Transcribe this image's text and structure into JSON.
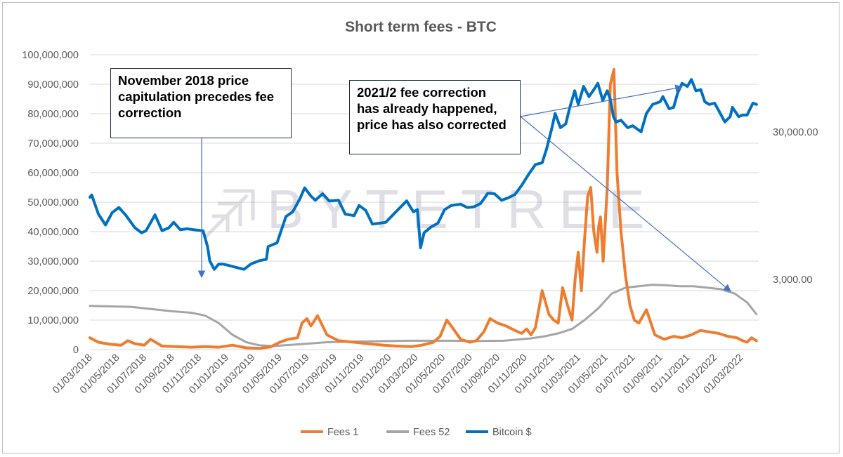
{
  "watermark": "BYTETREE",
  "annotations": [
    {
      "lines": [
        "November 2018 price",
        "capitulation precedes fee",
        "correction"
      ]
    },
    {
      "lines": [
        "2021/2 fee correction",
        "has already happened,",
        "price has also corrected"
      ]
    }
  ],
  "chart_data": {
    "type": "line",
    "title": "Short term fees - BTC",
    "xlabel": "",
    "ylabel": "",
    "y_left": {
      "ylim": [
        0,
        100000000
      ],
      "ticks": [
        0,
        10000000,
        20000000,
        30000000,
        40000000,
        50000000,
        60000000,
        70000000,
        80000000,
        90000000,
        100000000
      ],
      "tick_labels": [
        "0",
        "10,000,000",
        "20,000,000",
        "30,000,000",
        "40,000,000",
        "50,000,000",
        "60,000,000",
        "70,000,000",
        "80,000,000",
        "90,000,000",
        "100,000,000"
      ]
    },
    "y_right": {
      "scale": "log",
      "tick_labels": [
        "3,000.00",
        "30,000.00"
      ],
      "ticks": [
        3000,
        30000
      ],
      "ylim": [
        1000,
        100000
      ]
    },
    "x": {
      "xlim": [
        "2018-03-01",
        "2022-04-10"
      ],
      "tick_labels": [
        "01/03/2018",
        "01/05/2018",
        "01/07/2018",
        "01/09/2018",
        "01/11/2018",
        "01/01/2019",
        "01/03/2019",
        "01/05/2019",
        "01/07/2019",
        "01/09/2019",
        "01/11/2019",
        "01/01/2020",
        "01/03/2020",
        "01/05/2020",
        "01/07/2020",
        "01/09/2020",
        "01/11/2020",
        "01/01/2021",
        "01/03/2021",
        "01/05/2021",
        "01/07/2021",
        "01/09/2021",
        "01/11/2021",
        "01/01/2022",
        "01/03/2022"
      ],
      "ticks": [
        "2018-03-01",
        "2018-05-01",
        "2018-07-01",
        "2018-09-01",
        "2018-11-01",
        "2019-01-01",
        "2019-03-01",
        "2019-05-01",
        "2019-07-01",
        "2019-09-01",
        "2019-11-01",
        "2020-01-01",
        "2020-03-01",
        "2020-05-01",
        "2020-07-01",
        "2020-09-01",
        "2020-11-01",
        "2021-01-01",
        "2021-03-01",
        "2021-05-01",
        "2021-07-01",
        "2021-09-01",
        "2021-11-01",
        "2022-01-01",
        "2022-03-01"
      ]
    },
    "legend_position": "bottom",
    "grid": "horizontal",
    "series": [
      {
        "name": "Fees 1",
        "axis": "left",
        "color": "#ed7d31",
        "x": [
          "2018-03-01",
          "2018-03-20",
          "2018-04-15",
          "2018-05-10",
          "2018-05-25",
          "2018-06-10",
          "2018-07-01",
          "2018-07-15",
          "2018-08-10",
          "2018-09-10",
          "2018-10-15",
          "2018-11-15",
          "2018-12-15",
          "2019-01-15",
          "2019-02-15",
          "2019-03-15",
          "2019-04-10",
          "2019-05-01",
          "2019-05-20",
          "2019-06-10",
          "2019-06-20",
          "2019-07-01",
          "2019-07-10",
          "2019-07-25",
          "2019-08-15",
          "2019-09-10",
          "2019-10-15",
          "2019-11-15",
          "2019-12-20",
          "2020-01-20",
          "2020-02-20",
          "2020-03-15",
          "2020-04-10",
          "2020-04-25",
          "2020-05-10",
          "2020-05-20",
          "2020-06-10",
          "2020-07-01",
          "2020-07-15",
          "2020-08-01",
          "2020-08-15",
          "2020-09-01",
          "2020-09-20",
          "2020-10-10",
          "2020-10-25",
          "2020-11-05",
          "2020-11-15",
          "2020-11-25",
          "2020-12-10",
          "2020-12-25",
          "2021-01-05",
          "2021-01-15",
          "2021-01-25",
          "2021-02-05",
          "2021-02-15",
          "2021-02-22",
          "2021-03-01",
          "2021-03-08",
          "2021-03-15",
          "2021-03-22",
          "2021-03-29",
          "2021-04-05",
          "2021-04-12",
          "2021-04-16",
          "2021-04-20",
          "2021-04-26",
          "2021-05-05",
          "2021-05-12",
          "2021-05-20",
          "2021-05-27",
          "2021-06-05",
          "2021-06-15",
          "2021-06-25",
          "2021-07-05",
          "2021-07-15",
          "2021-08-01",
          "2021-08-20",
          "2021-09-10",
          "2021-10-01",
          "2021-10-20",
          "2021-11-10",
          "2021-11-30",
          "2021-12-20",
          "2022-01-10",
          "2022-01-31",
          "2022-02-20",
          "2022-03-05",
          "2022-03-15",
          "2022-03-25",
          "2022-04-05"
        ],
        "y": [
          4000000,
          2500000,
          1800000,
          1500000,
          3000000,
          2000000,
          1500000,
          3500000,
          1200000,
          1000000,
          800000,
          1000000,
          800000,
          1500000,
          600000,
          400000,
          900000,
          2500000,
          3500000,
          4000000,
          9000000,
          10500000,
          8000000,
          11500000,
          5000000,
          3000000,
          2500000,
          2000000,
          1500000,
          1200000,
          1000000,
          1500000,
          2500000,
          4500000,
          10000000,
          8000000,
          3500000,
          2500000,
          3000000,
          6000000,
          10500000,
          9000000,
          8000000,
          6500000,
          5500000,
          7000000,
          5000000,
          7500000,
          20000000,
          12000000,
          10000000,
          9000000,
          21000000,
          15000000,
          10000000,
          24000000,
          33000000,
          20000000,
          37000000,
          52000000,
          55000000,
          40000000,
          33000000,
          42000000,
          45000000,
          30000000,
          55000000,
          90000000,
          95000000,
          60000000,
          40000000,
          25000000,
          15000000,
          10000000,
          9000000,
          13500000,
          5000000,
          3500000,
          4500000,
          4000000,
          5000000,
          6500000,
          6000000,
          5500000,
          4500000,
          4000000,
          3000000,
          2500000,
          4000000,
          3000000
        ]
      },
      {
        "name": "Fees 52",
        "axis": "left",
        "color": "#a5a5a5",
        "x": [
          "2018-03-01",
          "2018-06-01",
          "2018-09-01",
          "2018-10-15",
          "2018-11-15",
          "2018-12-15",
          "2019-01-15",
          "2019-02-15",
          "2019-03-15",
          "2019-04-15",
          "2019-06-15",
          "2019-08-15",
          "2019-11-15",
          "2020-02-15",
          "2020-05-15",
          "2020-07-15",
          "2020-09-15",
          "2020-11-15",
          "2020-12-15",
          "2021-01-15",
          "2021-02-15",
          "2021-03-15",
          "2021-04-15",
          "2021-05-15",
          "2021-06-15",
          "2021-07-15",
          "2021-08-15",
          "2021-09-15",
          "2021-10-15",
          "2021-11-15",
          "2021-12-15",
          "2022-01-15",
          "2022-02-15",
          "2022-03-15",
          "2022-04-05"
        ],
        "y": [
          14800000,
          14500000,
          13000000,
          12500000,
          11500000,
          9000000,
          5000000,
          2500000,
          1500000,
          1200000,
          1800000,
          2500000,
          2800000,
          3000000,
          3000000,
          2900000,
          3000000,
          3800000,
          4500000,
          5500000,
          7000000,
          10000000,
          14000000,
          19000000,
          21000000,
          21500000,
          22000000,
          21800000,
          21500000,
          21500000,
          21000000,
          20500000,
          19000000,
          16000000,
          12000000
        ]
      },
      {
        "name": "Bitcoin $",
        "axis": "right",
        "color": "#0070c0",
        "x": [
          "2018-03-01",
          "2018-03-05",
          "2018-03-20",
          "2018-04-05",
          "2018-04-20",
          "2018-05-05",
          "2018-05-20",
          "2018-06-10",
          "2018-06-25",
          "2018-07-05",
          "2018-07-25",
          "2018-08-10",
          "2018-08-25",
          "2018-09-05",
          "2018-09-20",
          "2018-10-05",
          "2018-10-20",
          "2018-11-10",
          "2018-11-20",
          "2018-11-25",
          "2018-12-05",
          "2018-12-15",
          "2018-12-25",
          "2019-01-10",
          "2019-01-25",
          "2019-02-10",
          "2019-02-25",
          "2019-03-15",
          "2019-04-01",
          "2019-04-05",
          "2019-04-25",
          "2019-05-15",
          "2019-05-30",
          "2019-06-15",
          "2019-06-26",
          "2019-07-10",
          "2019-07-20",
          "2019-08-05",
          "2019-08-20",
          "2019-09-10",
          "2019-09-25",
          "2019-10-15",
          "2019-10-26",
          "2019-11-10",
          "2019-11-25",
          "2019-12-10",
          "2019-12-25",
          "2020-01-15",
          "2020-02-10",
          "2020-02-25",
          "2020-03-05",
          "2020-03-12",
          "2020-03-20",
          "2020-04-05",
          "2020-04-20",
          "2020-05-05",
          "2020-05-20",
          "2020-06-10",
          "2020-06-25",
          "2020-07-10",
          "2020-07-25",
          "2020-08-10",
          "2020-08-25",
          "2020-09-10",
          "2020-09-25",
          "2020-10-10",
          "2020-10-25",
          "2020-11-10",
          "2020-11-25",
          "2020-12-10",
          "2020-12-20",
          "2021-01-01",
          "2021-01-08",
          "2021-01-20",
          "2021-02-01",
          "2021-02-10",
          "2021-02-21",
          "2021-03-01",
          "2021-03-13",
          "2021-03-25",
          "2021-04-05",
          "2021-04-14",
          "2021-04-25",
          "2021-05-05",
          "2021-05-12",
          "2021-05-19",
          "2021-05-25",
          "2021-06-05",
          "2021-06-20",
          "2021-07-01",
          "2021-07-20",
          "2021-08-01",
          "2021-08-15",
          "2021-09-01",
          "2021-09-07",
          "2021-09-21",
          "2021-10-01",
          "2021-10-10",
          "2021-10-20",
          "2021-11-01",
          "2021-11-10",
          "2021-11-20",
          "2021-12-01",
          "2021-12-10",
          "2021-12-20",
          "2022-01-01",
          "2022-01-10",
          "2022-01-24",
          "2022-02-05",
          "2022-02-10",
          "2022-02-24",
          "2022-03-05",
          "2022-03-15",
          "2022-03-28",
          "2022-04-05"
        ],
        "y": [
          10800,
          11200,
          8300,
          7000,
          8500,
          9200,
          8200,
          6700,
          6200,
          6400,
          8200,
          6400,
          6700,
          7300,
          6500,
          6600,
          6500,
          6400,
          5000,
          4000,
          3500,
          3800,
          3800,
          3700,
          3600,
          3500,
          3800,
          4000,
          4100,
          5000,
          5300,
          8000,
          8600,
          10500,
          12500,
          11000,
          10300,
          11400,
          10200,
          10300,
          8300,
          8100,
          9500,
          8800,
          7100,
          7200,
          7300,
          8500,
          10200,
          8600,
          8900,
          4900,
          6200,
          6800,
          7200,
          8900,
          9500,
          9700,
          9200,
          9300,
          9800,
          11500,
          11400,
          10300,
          10700,
          11300,
          13000,
          15500,
          18000,
          18500,
          23000,
          32000,
          40000,
          32000,
          34000,
          44000,
          57000,
          46000,
          61000,
          52000,
          58000,
          64000,
          49000,
          57000,
          50000,
          38000,
          35000,
          36000,
          32000,
          33000,
          30000,
          40000,
          46000,
          48000,
          52000,
          43000,
          44000,
          55000,
          64000,
          61000,
          68000,
          57000,
          58000,
          48000,
          46000,
          47000,
          42000,
          35000,
          38000,
          44000,
          38000,
          39000,
          39000,
          47000,
          46000
        ]
      }
    ],
    "legend": [
      "Fees 1",
      "Fees 52",
      "Bitcoin $"
    ]
  }
}
